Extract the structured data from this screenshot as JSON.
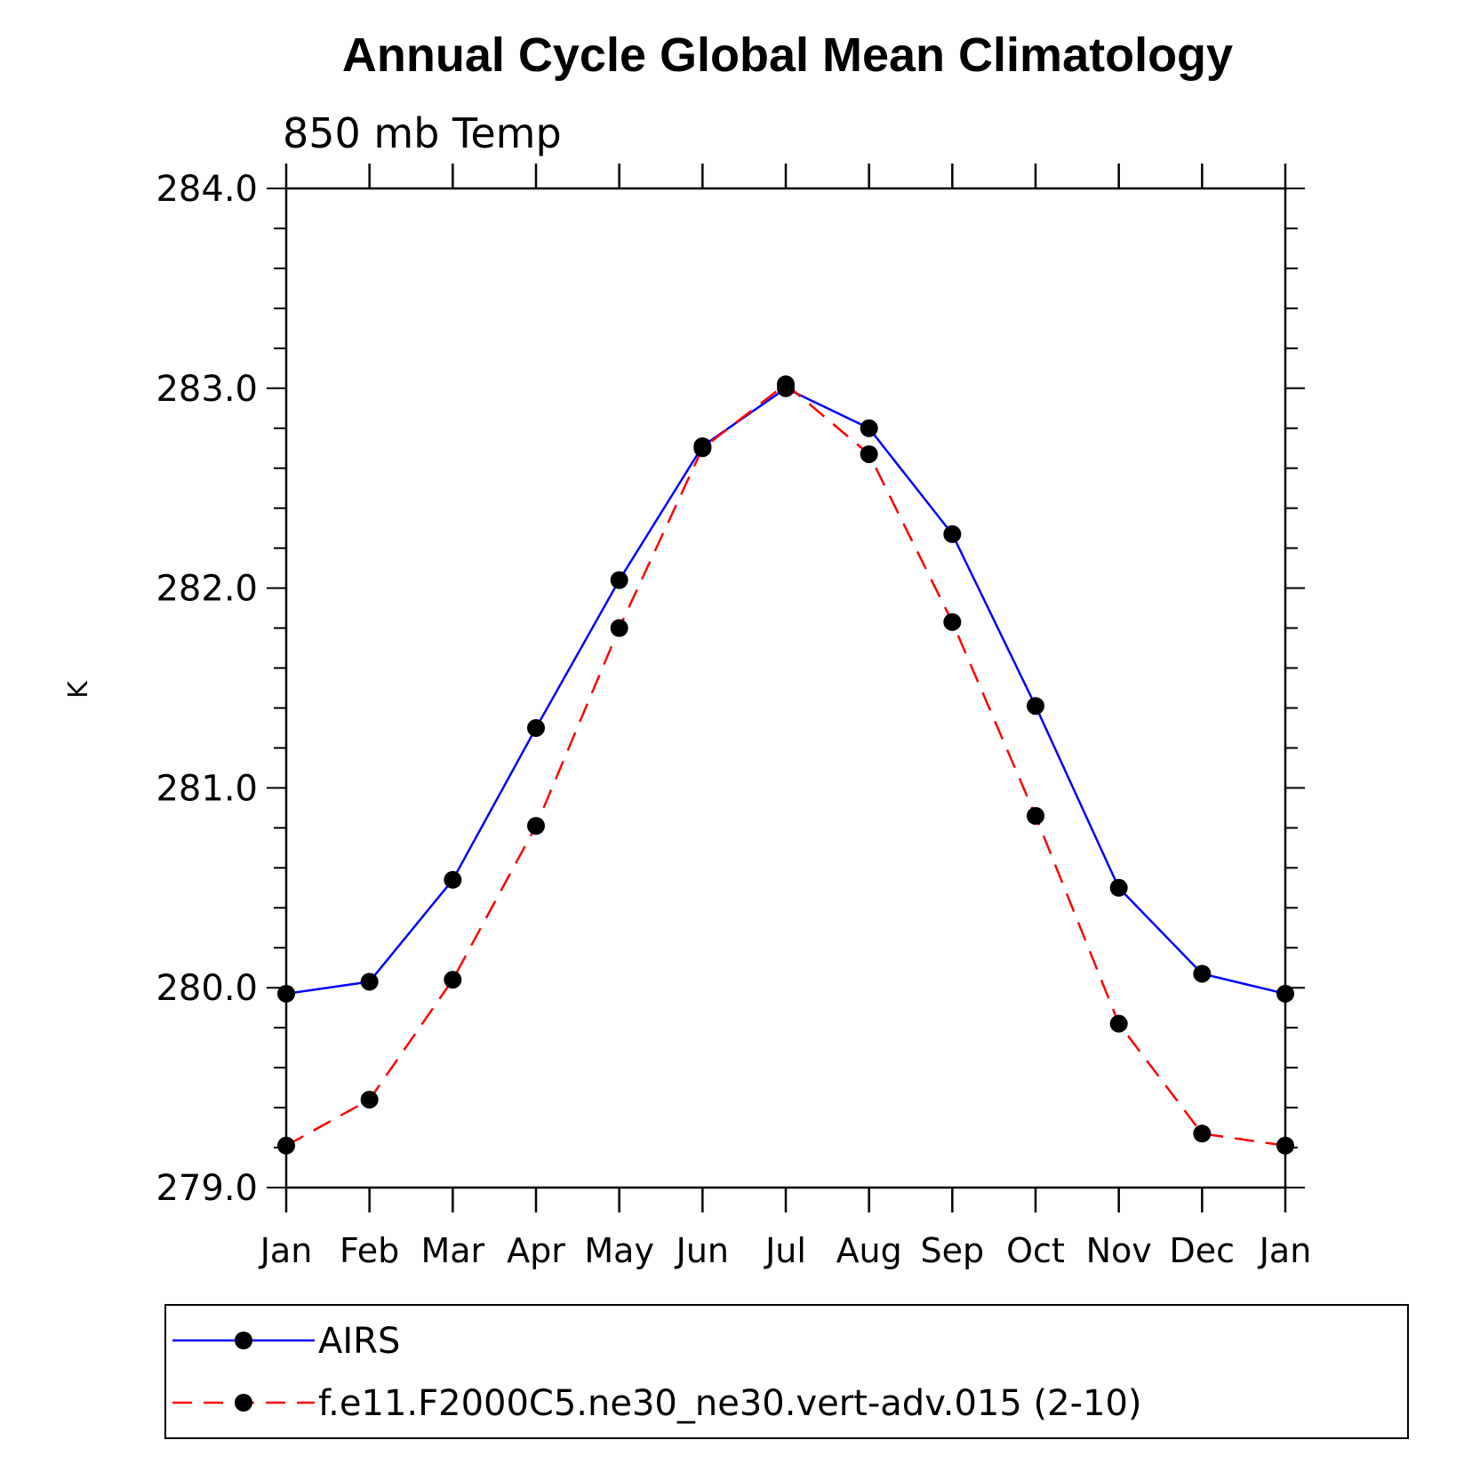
{
  "chart_data": {
    "type": "line",
    "title": "Annual Cycle Global Mean Climatology",
    "subtitle": "850 mb Temp",
    "xlabel": "",
    "ylabel": "K",
    "categories": [
      "Jan",
      "Feb",
      "Mar",
      "Apr",
      "May",
      "Jun",
      "Jul",
      "Aug",
      "Sep",
      "Oct",
      "Nov",
      "Dec",
      "Jan"
    ],
    "ylim": [
      279.0,
      284.0
    ],
    "yticks": [
      "279.0",
      "280.0",
      "281.0",
      "282.0",
      "283.0",
      "284.0"
    ],
    "grid": false,
    "legend_position": "bottom",
    "series": [
      {
        "name": "AIRS",
        "color": "#0000ff",
        "line_style": "solid",
        "marker": "filled-circle",
        "values": [
          279.97,
          280.03,
          280.54,
          281.3,
          282.04,
          282.71,
          283.0,
          282.8,
          282.27,
          281.41,
          280.5,
          280.07,
          279.97
        ]
      },
      {
        "name": "f.e11.F2000C5.ne30_ne30.vert-adv.015 (2-10)",
        "color": "#ff0000",
        "line_style": "dashed",
        "marker": "filled-circle",
        "values": [
          279.21,
          279.44,
          280.04,
          280.81,
          281.8,
          282.7,
          283.02,
          282.67,
          281.83,
          280.86,
          279.82,
          279.27,
          279.21
        ]
      }
    ]
  }
}
